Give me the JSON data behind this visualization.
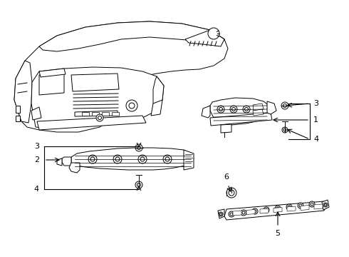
{
  "background_color": "#ffffff",
  "line_color": "#000000",
  "fig_width": 4.9,
  "fig_height": 3.6,
  "dpi": 100,
  "font_size": 8,
  "lw": 0.7
}
